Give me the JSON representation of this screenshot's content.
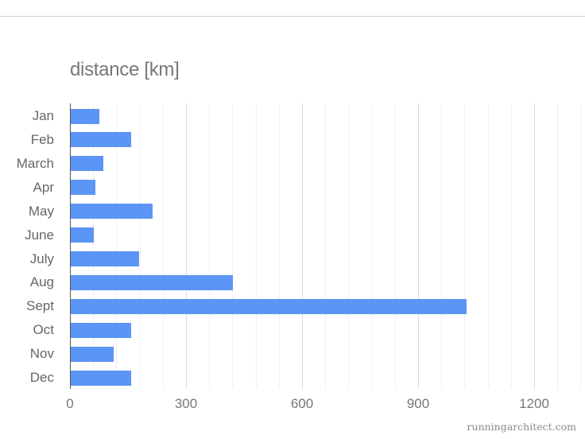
{
  "chart_data": {
    "type": "bar",
    "orientation": "horizontal",
    "title": "distance [km]",
    "xlabel": "",
    "ylabel": "",
    "categories": [
      "Jan",
      "Feb",
      "March",
      "Apr",
      "May",
      "June",
      "July",
      "Aug",
      "Sept",
      "Oct",
      "Nov",
      "Dec"
    ],
    "values": [
      73,
      156,
      85,
      63,
      211,
      60,
      176,
      419,
      1023,
      156,
      111,
      156
    ],
    "xlim": [
      0,
      1320
    ],
    "xticks": [
      "0",
      "300",
      "600",
      "900",
      "1200"
    ],
    "grid": true,
    "minor_grid_step": 60,
    "major_grid_step": 300,
    "legend": "none",
    "bar_color": "#5b95f5"
  },
  "credit": "runningarchitect.com",
  "colors": {
    "bar": "#5b95f5",
    "title": "#777777",
    "label": "#666666",
    "grid_minor": "#efefef",
    "grid_major": "#dadada"
  }
}
